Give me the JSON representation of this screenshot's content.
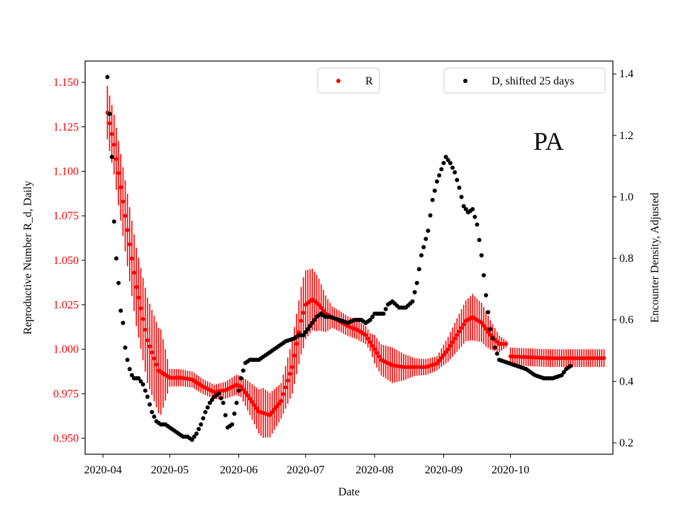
{
  "chart_data": {
    "type": "scatter",
    "annotation": "PA",
    "xlabel": "Date",
    "y_left_label": "Reproductive Number R_d, Daily",
    "y_right_label": "Encounter Density, Adjusted",
    "left_color": "#ff0000",
    "right_color": "#000000",
    "left_ylim": [
      0.941,
      1.162
    ],
    "right_ylim": [
      0.163,
      1.442
    ],
    "x_range_days": [
      -8,
      229
    ],
    "x_ticks": [
      {
        "day": 0,
        "label": "2020-04"
      },
      {
        "day": 30,
        "label": "2020-05"
      },
      {
        "day": 61,
        "label": "2020-06"
      },
      {
        "day": 91,
        "label": "2020-07"
      },
      {
        "day": 122,
        "label": "2020-08"
      },
      {
        "day": 153,
        "label": "2020-09"
      },
      {
        "day": 183,
        "label": "2020-10"
      }
    ],
    "left_ticks": [
      {
        "v": 0.95,
        "label": "0.950"
      },
      {
        "v": 0.975,
        "label": "0.975"
      },
      {
        "v": 1.0,
        "label": "1.000"
      },
      {
        "v": 1.025,
        "label": "1.025"
      },
      {
        "v": 1.05,
        "label": "1.050"
      },
      {
        "v": 1.075,
        "label": "1.075"
      },
      {
        "v": 1.1,
        "label": "1.100"
      },
      {
        "v": 1.125,
        "label": "1.125"
      },
      {
        "v": 1.15,
        "label": "1.150"
      }
    ],
    "right_ticks": [
      {
        "v": 0.2,
        "label": "0.2"
      },
      {
        "v": 0.4,
        "label": "0.4"
      },
      {
        "v": 0.6,
        "label": "0.6"
      },
      {
        "v": 0.8,
        "label": "0.8"
      },
      {
        "v": 1.0,
        "label": "1.0"
      },
      {
        "v": 1.2,
        "label": "1.2"
      },
      {
        "v": 1.4,
        "label": "1.4"
      }
    ],
    "legend_left": {
      "label": "R",
      "position": "top-center"
    },
    "legend_right": {
      "label": "D, shifted 25 days",
      "position": "top-right"
    },
    "R_keypoints": [
      [
        2,
        1.133
      ],
      [
        5,
        1.115
      ],
      [
        10,
        1.075
      ],
      [
        15,
        1.035
      ],
      [
        20,
        1.005
      ],
      [
        25,
        0.988
      ],
      [
        30,
        0.984
      ],
      [
        35,
        0.984
      ],
      [
        40,
        0.983
      ],
      [
        45,
        0.979
      ],
      [
        50,
        0.976
      ],
      [
        55,
        0.977
      ],
      [
        60,
        0.98
      ],
      [
        62,
        0.979
      ],
      [
        65,
        0.974
      ],
      [
        70,
        0.965
      ],
      [
        75,
        0.963
      ],
      [
        80,
        0.971
      ],
      [
        85,
        0.99
      ],
      [
        89,
        1.016
      ],
      [
        91,
        1.025
      ],
      [
        94,
        1.028
      ],
      [
        97,
        1.025
      ],
      [
        100,
        1.02
      ],
      [
        103,
        1.018
      ],
      [
        106,
        1.016
      ],
      [
        110,
        1.013
      ],
      [
        114,
        1.011
      ],
      [
        118,
        1.008
      ],
      [
        122,
        1.0
      ],
      [
        125,
        0.994
      ],
      [
        130,
        0.991
      ],
      [
        135,
        0.99
      ],
      [
        140,
        0.99
      ],
      [
        145,
        0.99
      ],
      [
        150,
        0.992
      ],
      [
        155,
        1.0
      ],
      [
        160,
        1.01
      ],
      [
        163,
        1.016
      ],
      [
        166,
        1.018
      ],
      [
        170,
        1.015
      ],
      [
        174,
        1.008
      ],
      [
        178,
        1.003
      ],
      [
        181,
        1.003
      ]
    ],
    "R_tail_keypoints": [
      [
        183,
        0.996
      ],
      [
        200,
        0.995
      ],
      [
        225,
        0.995
      ]
    ],
    "R_error_keypoints": [
      [
        2,
        0.015
      ],
      [
        10,
        0.02
      ],
      [
        20,
        0.024
      ],
      [
        26,
        0.024
      ],
      [
        30,
        0.005
      ],
      [
        50,
        0.004
      ],
      [
        62,
        0.006
      ],
      [
        72,
        0.014
      ],
      [
        80,
        0.01
      ],
      [
        90,
        0.02
      ],
      [
        96,
        0.016
      ],
      [
        103,
        0.006
      ],
      [
        120,
        0.005
      ],
      [
        122,
        0.008
      ],
      [
        130,
        0.01
      ],
      [
        140,
        0.005
      ],
      [
        150,
        0.004
      ],
      [
        160,
        0.01
      ],
      [
        166,
        0.013
      ],
      [
        172,
        0.01
      ],
      [
        181,
        0.002
      ]
    ],
    "R_tail_error": 0.005,
    "D_keypoints": [
      [
        2,
        1.39
      ],
      [
        3,
        1.27
      ],
      [
        4,
        1.13
      ],
      [
        5,
        0.92
      ],
      [
        6,
        0.8
      ],
      [
        7,
        0.72
      ],
      [
        8,
        0.63
      ],
      [
        9,
        0.59
      ],
      [
        10,
        0.51
      ],
      [
        11,
        0.47
      ],
      [
        12,
        0.44
      ],
      [
        13,
        0.42
      ],
      [
        14,
        0.41
      ],
      [
        16,
        0.41
      ],
      [
        18,
        0.39
      ],
      [
        20,
        0.35
      ],
      [
        22,
        0.3
      ],
      [
        24,
        0.27
      ],
      [
        26,
        0.26
      ],
      [
        28,
        0.26
      ],
      [
        30,
        0.25
      ],
      [
        32,
        0.24
      ],
      [
        34,
        0.23
      ],
      [
        36,
        0.22
      ],
      [
        38,
        0.22
      ],
      [
        40,
        0.21
      ],
      [
        42,
        0.23
      ],
      [
        44,
        0.26
      ],
      [
        46,
        0.3
      ],
      [
        48,
        0.33
      ],
      [
        50,
        0.35
      ],
      [
        52,
        0.36
      ],
      [
        54,
        0.33
      ],
      [
        56,
        0.25
      ],
      [
        58,
        0.26
      ],
      [
        60,
        0.33
      ],
      [
        62,
        0.41
      ],
      [
        64,
        0.46
      ],
      [
        66,
        0.47
      ],
      [
        70,
        0.47
      ],
      [
        74,
        0.49
      ],
      [
        78,
        0.51
      ],
      [
        82,
        0.53
      ],
      [
        86,
        0.54
      ],
      [
        88,
        0.55
      ],
      [
        90,
        0.55
      ],
      [
        92,
        0.57
      ],
      [
        94,
        0.59
      ],
      [
        96,
        0.61
      ],
      [
        98,
        0.62
      ],
      [
        100,
        0.61
      ],
      [
        102,
        0.61
      ],
      [
        106,
        0.6
      ],
      [
        110,
        0.59
      ],
      [
        113,
        0.6
      ],
      [
        116,
        0.6
      ],
      [
        118,
        0.59
      ],
      [
        120,
        0.6
      ],
      [
        122,
        0.62
      ],
      [
        124,
        0.62
      ],
      [
        126,
        0.62
      ],
      [
        128,
        0.65
      ],
      [
        130,
        0.66
      ],
      [
        133,
        0.64
      ],
      [
        136,
        0.64
      ],
      [
        139,
        0.66
      ],
      [
        141,
        0.72
      ],
      [
        143,
        0.81
      ],
      [
        146,
        0.89
      ],
      [
        148,
        0.99
      ],
      [
        150,
        1.05
      ],
      [
        152,
        1.09
      ],
      [
        154,
        1.13
      ],
      [
        156,
        1.11
      ],
      [
        158,
        1.08
      ],
      [
        160,
        1.03
      ],
      [
        162,
        0.97
      ],
      [
        164,
        0.95
      ],
      [
        166,
        0.96
      ],
      [
        168,
        0.91
      ],
      [
        170,
        0.81
      ],
      [
        172,
        0.68
      ],
      [
        174,
        0.57
      ],
      [
        176,
        0.51
      ],
      [
        178,
        0.47
      ],
      [
        182,
        0.46
      ],
      [
        186,
        0.45
      ],
      [
        190,
        0.44
      ],
      [
        194,
        0.42
      ],
      [
        198,
        0.41
      ],
      [
        202,
        0.41
      ],
      [
        206,
        0.42
      ],
      [
        208,
        0.44
      ],
      [
        210,
        0.45
      ]
    ]
  }
}
